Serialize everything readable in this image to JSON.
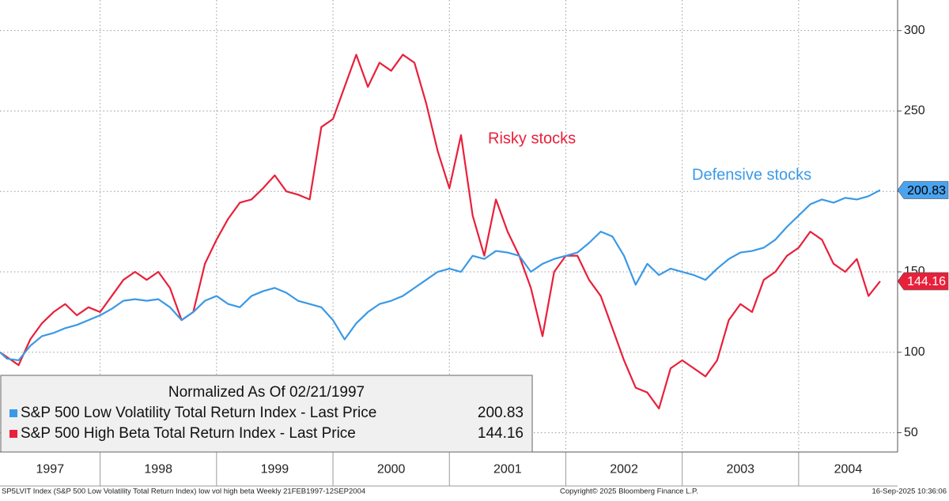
{
  "chart_data": {
    "type": "line",
    "legend_title": "Normalized As Of 02/21/1997",
    "annotations": [
      {
        "text": "Risky stocks",
        "color": "#e8203a"
      },
      {
        "text": "Defensive stocks",
        "color": "#3a99e6"
      }
    ],
    "footer_left": "SP5LVIT Index (S&P 500 Low Volatility Total Return Index) low vol high beta  Weekly 21FEB1997-12SEP2004",
    "footer_center": "Copyright© 2025 Bloomberg Finance L.P.",
    "footer_right": "16-Sep-2025 10:36:06",
    "year_labels": [
      "1997",
      "1998",
      "1999",
      "2000",
      "2001",
      "2002",
      "2003",
      "2004"
    ],
    "xlim": [
      1997.14,
      2004.85
    ],
    "xticks": [
      1998,
      1999,
      2000,
      2001,
      2002,
      2003,
      2004
    ],
    "ylim": [
      38,
      319
    ],
    "yticks": [
      50,
      100,
      150,
      200,
      250,
      300
    ],
    "grid": true,
    "legend": "lower left",
    "x": [
      1997.14,
      1997.2,
      1997.3,
      1997.4,
      1997.5,
      1997.6,
      1997.7,
      1997.8,
      1997.9,
      1998.0,
      1998.1,
      1998.2,
      1998.3,
      1998.4,
      1998.5,
      1998.6,
      1998.7,
      1998.8,
      1998.9,
      1999.0,
      1999.1,
      1999.2,
      1999.3,
      1999.4,
      1999.5,
      1999.6,
      1999.7,
      1999.8,
      1999.9,
      2000.0,
      2000.1,
      2000.2,
      2000.3,
      2000.4,
      2000.5,
      2000.6,
      2000.7,
      2000.8,
      2000.9,
      2001.0,
      2001.1,
      2001.2,
      2001.3,
      2001.4,
      2001.5,
      2001.6,
      2001.7,
      2001.8,
      2001.9,
      2002.0,
      2002.1,
      2002.2,
      2002.3,
      2002.4,
      2002.5,
      2002.6,
      2002.7,
      2002.8,
      2002.9,
      2003.0,
      2003.1,
      2003.2,
      2003.3,
      2003.4,
      2003.5,
      2003.6,
      2003.7,
      2003.8,
      2003.9,
      2004.0,
      2004.1,
      2004.2,
      2004.3,
      2004.4,
      2004.5,
      2004.6,
      2004.7
    ],
    "series": [
      {
        "name": "S&P 500 Low Volatility Total Return Index - Last Price",
        "color": "#3a99e6",
        "flag_color": "#4aa3ef",
        "flag_text_color": "#000000",
        "values": [
          100,
          96,
          95,
          104,
          110,
          112,
          115,
          117,
          120,
          123,
          127,
          132,
          133,
          132,
          133,
          128,
          120,
          125,
          132,
          135,
          130,
          128,
          135,
          138,
          140,
          137,
          132,
          130,
          128,
          120,
          108,
          118,
          125,
          130,
          132,
          135,
          140,
          145,
          150,
          152,
          150,
          160,
          158,
          163,
          162,
          160,
          150,
          155,
          158,
          160,
          162,
          168,
          175,
          172,
          160,
          142,
          155,
          148,
          152,
          150,
          148,
          145,
          152,
          158,
          162,
          163,
          165,
          170,
          178,
          185,
          192,
          195,
          193,
          196,
          195,
          197,
          200.83
        ]
      },
      {
        "name": "S&P 500 High Beta Total Return Index - Last Price",
        "color": "#e8203a",
        "flag_color": "#e8203a",
        "flag_text_color": "#ffffff",
        "values": [
          100,
          97,
          92,
          108,
          118,
          125,
          130,
          123,
          128,
          125,
          135,
          145,
          150,
          145,
          150,
          140,
          120,
          125,
          155,
          170,
          183,
          193,
          195,
          202,
          210,
          200,
          198,
          195,
          240,
          245,
          265,
          285,
          265,
          280,
          275,
          285,
          280,
          255,
          225,
          202,
          235,
          185,
          160,
          195,
          175,
          160,
          140,
          110,
          150,
          160,
          160,
          145,
          135,
          115,
          95,
          78,
          75,
          65,
          90,
          95,
          90,
          85,
          95,
          120,
          130,
          125,
          145,
          150,
          160,
          165,
          175,
          170,
          155,
          150,
          158,
          135,
          144.16
        ]
      }
    ]
  }
}
